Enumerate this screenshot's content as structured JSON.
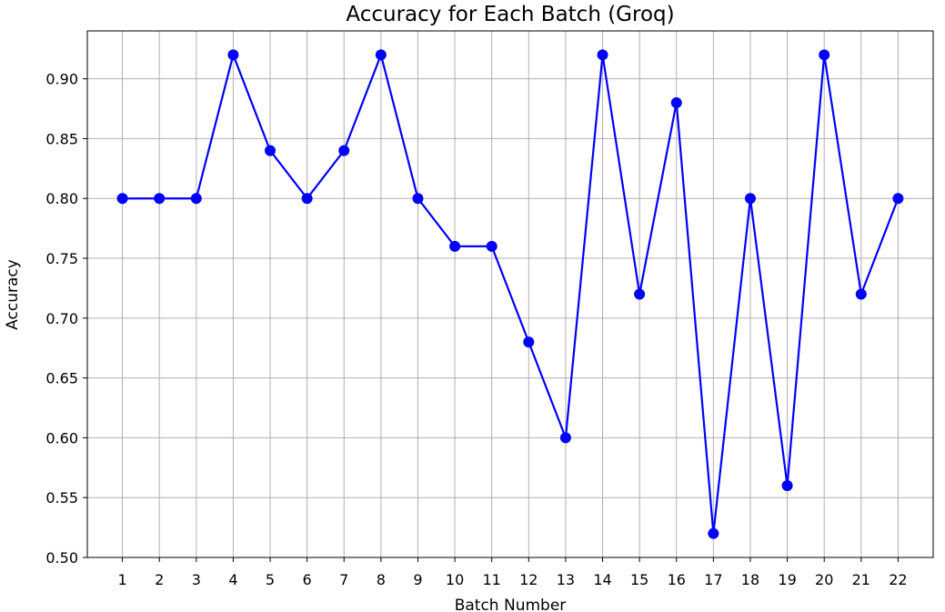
{
  "chart_data": {
    "type": "line",
    "title": "Accuracy for Each Batch (Groq)",
    "xlabel": "Batch Number",
    "ylabel": "Accuracy",
    "x": [
      1,
      2,
      3,
      4,
      5,
      6,
      7,
      8,
      9,
      10,
      11,
      12,
      13,
      14,
      15,
      16,
      17,
      18,
      19,
      20,
      21,
      22
    ],
    "x_ticks": [
      "1",
      "2",
      "3",
      "4",
      "5",
      "6",
      "7",
      "8",
      "9",
      "10",
      "11",
      "12",
      "13",
      "14",
      "15",
      "16",
      "17",
      "18",
      "19",
      "20",
      "21",
      "22"
    ],
    "y_ticks": [
      "0.50",
      "0.55",
      "0.60",
      "0.65",
      "0.70",
      "0.75",
      "0.80",
      "0.85",
      "0.90"
    ],
    "series": [
      {
        "values": [
          0.8,
          0.8,
          0.8,
          0.92,
          0.84,
          0.8,
          0.84,
          0.92,
          0.8,
          0.76,
          0.76,
          0.68,
          0.6,
          0.92,
          0.72,
          0.88,
          0.52,
          0.8,
          0.56,
          0.92,
          0.72,
          0.8
        ],
        "color": "#0000ff",
        "marker": "circle"
      }
    ],
    "xlim": [
      0.05,
      22.95
    ],
    "ylim": [
      0.5,
      0.94
    ],
    "grid": true,
    "legend": "none"
  }
}
